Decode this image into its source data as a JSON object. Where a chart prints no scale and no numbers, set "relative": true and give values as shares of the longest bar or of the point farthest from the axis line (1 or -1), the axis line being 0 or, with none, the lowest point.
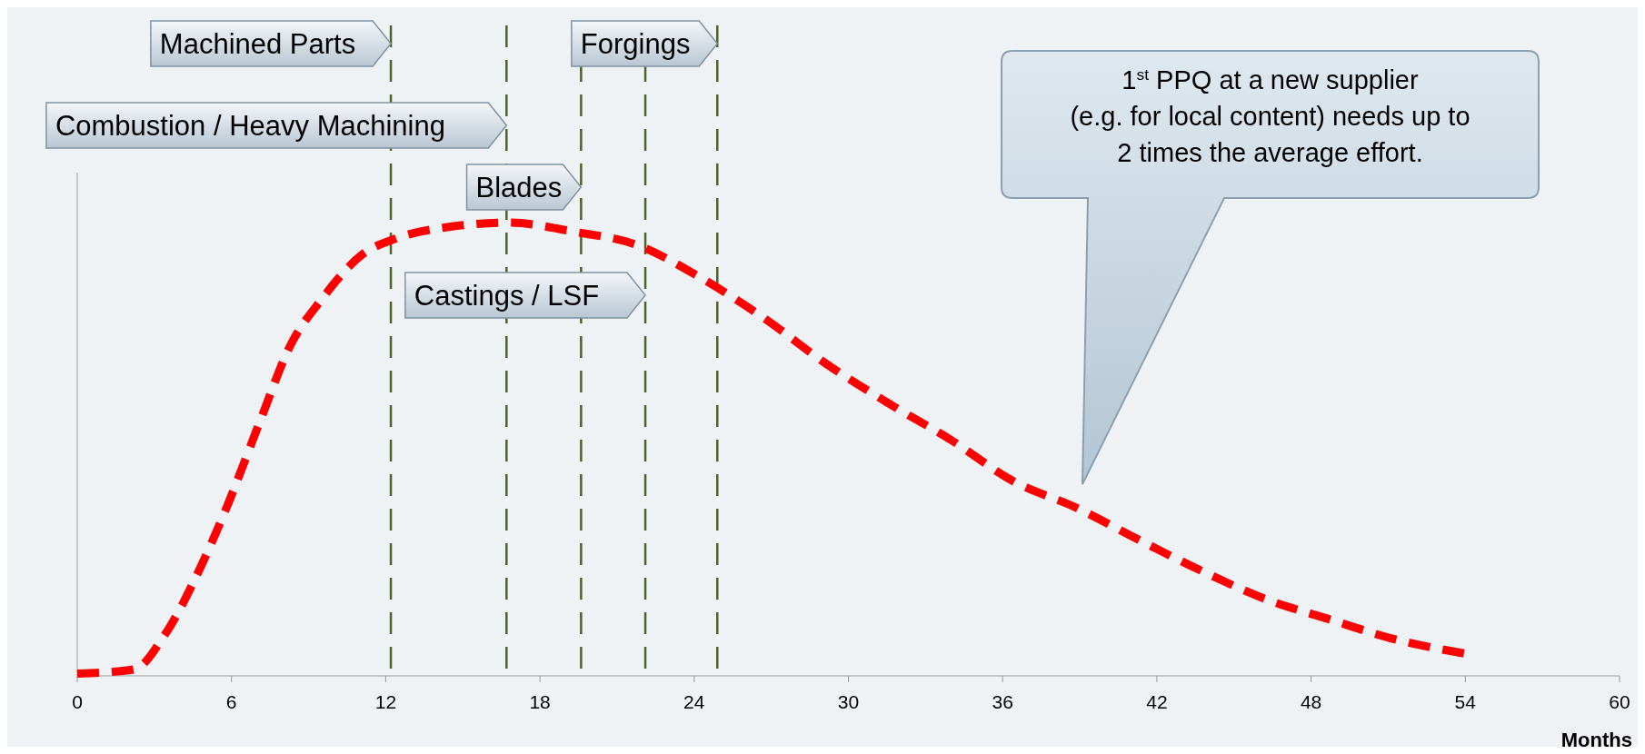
{
  "chart_data": {
    "type": "line",
    "relative": true,
    "xlabel": "Months",
    "xlim": [
      0,
      60
    ],
    "xticks": [
      0,
      6,
      12,
      18,
      24,
      30,
      36,
      42,
      48,
      54,
      60
    ],
    "grid": false,
    "line_style": "dashed",
    "series": [
      {
        "color": "#ff0000",
        "x": [
          0,
          2.2,
          3.4,
          4.8,
          5.8,
          7.1,
          8.3,
          9.5,
          11.1,
          12.4,
          14.4,
          16.8,
          19.3,
          21.8,
          24.2,
          26.7,
          29.1,
          31.6,
          34,
          36.4,
          38.9,
          41.3,
          43.8,
          46.2,
          48.7,
          51.1,
          54.2
        ],
        "values": [
          0.005,
          0.014,
          0.09,
          0.24,
          0.37,
          0.56,
          0.73,
          0.83,
          0.93,
          0.965,
          0.99,
          1,
          0.98,
          0.95,
          0.88,
          0.79,
          0.69,
          0.6,
          0.52,
          0.43,
          0.37,
          0.3,
          0.23,
          0.17,
          0.125,
          0.083,
          0.047
        ]
      }
    ],
    "ref_lines": [
      {
        "axis": "x",
        "value": 12.2,
        "label": "Machined Parts",
        "color": "#4f6228",
        "line_style": "dashed"
      },
      {
        "axis": "x",
        "value": 16.7,
        "label": "Combustion / Heavy Machining",
        "color": "#4f6228",
        "line_style": "dashed"
      },
      {
        "axis": "x",
        "value": 19.6,
        "label": "Blades",
        "color": "#4f6228",
        "line_style": "dashed"
      },
      {
        "axis": "x",
        "value": 22.1,
        "label": "Castings / LSF",
        "color": "#4f6228",
        "line_style": "dashed"
      },
      {
        "axis": "x",
        "value": 24.9,
        "label": "Forgings",
        "color": "#4f6228",
        "line_style": "dashed"
      }
    ],
    "annotations": [
      "1$^{st}$  PPQ at a new supplier\n(e.g. for local content) needs up to\n2 times the average effort."
    ]
  }
}
